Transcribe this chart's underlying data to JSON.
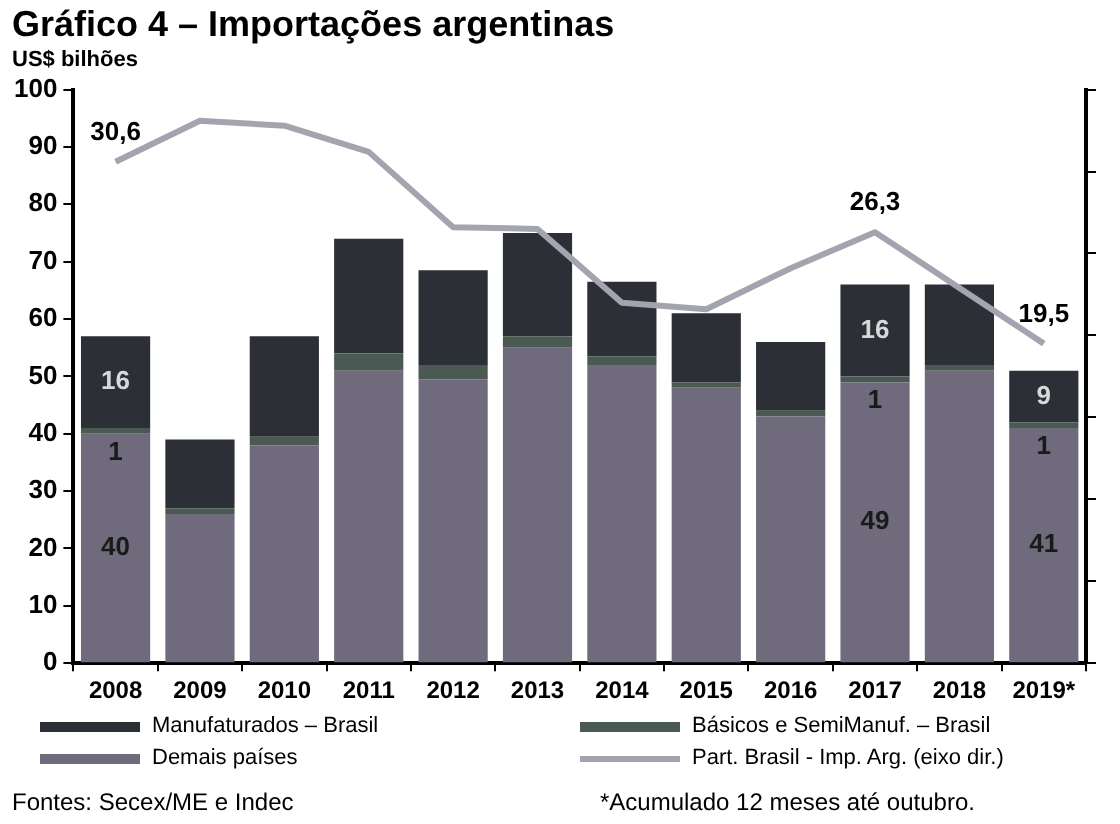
{
  "chart_data": {
    "type": "bar",
    "title": "Gráfico 4 – Importações argentinas",
    "ylabel": "US$ bilhões",
    "categories": [
      "2008",
      "2009",
      "2010",
      "2011",
      "2012",
      "2013",
      "2014",
      "2015",
      "2016",
      "2017",
      "2018",
      "2019*"
    ],
    "stacked": true,
    "series": [
      {
        "name": "Demais países",
        "color": "#6f6a7c",
        "values": [
          40,
          26,
          38,
          51,
          49.5,
          55,
          52,
          48,
          43,
          49,
          51,
          41
        ],
        "value_labels": [
          "40",
          null,
          null,
          null,
          null,
          null,
          null,
          null,
          null,
          "49",
          null,
          "41"
        ]
      },
      {
        "name": "Básicos e SemiManuf. – Brasil",
        "color": "#4a5a52",
        "values": [
          1,
          1,
          1.5,
          3,
          2.5,
          2,
          1.5,
          1,
          1,
          1,
          1,
          1
        ],
        "value_labels": [
          "1",
          null,
          null,
          null,
          null,
          null,
          null,
          null,
          null,
          "1",
          null,
          "1"
        ]
      },
      {
        "name": "Manufaturados – Brasil",
        "color": "#2c2f36",
        "values": [
          16,
          12,
          17.5,
          20,
          16.5,
          18,
          13,
          12,
          12,
          16,
          14,
          9
        ],
        "value_labels": [
          "16",
          null,
          null,
          null,
          null,
          null,
          null,
          null,
          null,
          "16",
          null,
          "9"
        ]
      },
      {
        "name": "Part. Brasil - Imp. Arg. (eixo dir.)",
        "type": "line",
        "axis": "y2",
        "color": "#a4a4b0",
        "values": [
          30.6,
          33.1,
          32.8,
          31.2,
          26.6,
          26.5,
          22.0,
          21.6,
          24.1,
          26.3,
          22.9,
          19.5
        ],
        "value_labels": [
          "30,6",
          null,
          null,
          null,
          null,
          null,
          null,
          null,
          null,
          "26,3",
          null,
          "19,5"
        ]
      }
    ],
    "ylim": [
      0,
      100
    ],
    "yticks": [
      0,
      10,
      20,
      30,
      40,
      50,
      60,
      70,
      80,
      90,
      100
    ],
    "y2lim": [
      0,
      35
    ],
    "y2ticks": [
      {
        "value": 0,
        "label": null
      },
      {
        "value": 5,
        "label": null
      },
      {
        "value": 10,
        "label": null
      },
      {
        "value": 15,
        "label": null
      },
      {
        "value": 20,
        "label": null
      },
      {
        "value": 25,
        "label": null
      },
      {
        "value": 30,
        "label": null
      },
      {
        "value": 35,
        "label": null
      }
    ],
    "grid": false,
    "legend": "bottom",
    "marker": "none",
    "annotations": [
      "Fontes: Secex/ME e Indec",
      "*Acumulado 12 meses até outubro."
    ]
  }
}
